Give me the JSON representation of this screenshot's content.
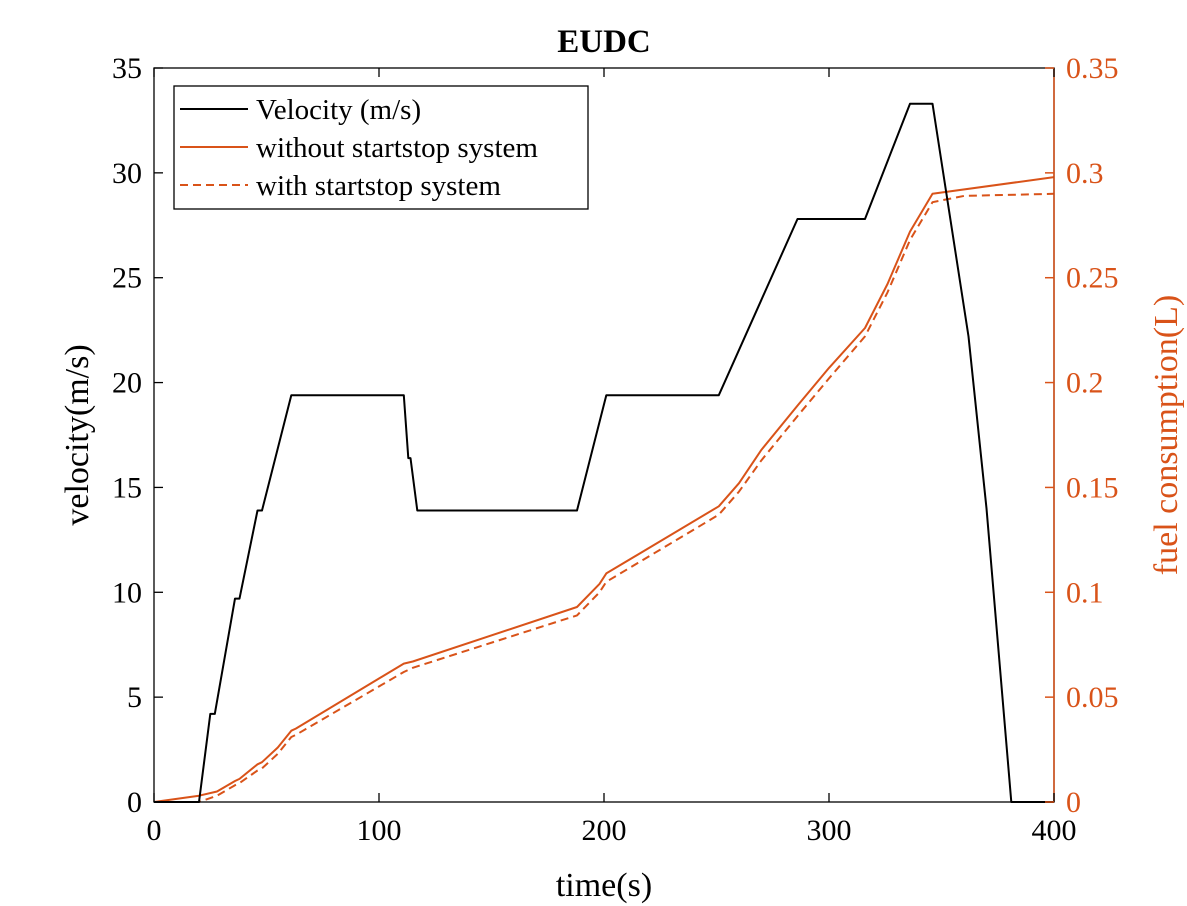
{
  "chart_data": {
    "type": "line",
    "title": "EUDC",
    "xlabel": "time(s)",
    "ylabel_left": "velocity(m/s)",
    "ylabel_right": "fuel consumption(L)",
    "xlim": [
      0,
      400
    ],
    "ylim_left": [
      0,
      35
    ],
    "ylim_right": [
      0,
      0.35
    ],
    "xticks": [
      "0",
      "100",
      "200",
      "300",
      "400"
    ],
    "yticks_left": [
      "0",
      "5",
      "10",
      "15",
      "20",
      "25",
      "30",
      "35"
    ],
    "yticks_right": [
      "0",
      "0.05",
      "0.1",
      "0.15",
      "0.2",
      "0.25",
      "0.3",
      "0.35"
    ],
    "grid": false,
    "legend_position": "top-left",
    "colors": {
      "left_axis": "#000000",
      "right_axis": "#d95319"
    },
    "series": [
      {
        "name": "Velocity (m/s)",
        "axis": "left",
        "color": "#000000",
        "style": "solid",
        "x": [
          0,
          20,
          25,
          27,
          36,
          38,
          46,
          48,
          61,
          111,
          113,
          114,
          117,
          188,
          201,
          251,
          286,
          316,
          336,
          346,
          362,
          370,
          381,
          400
        ],
        "y": [
          0,
          0,
          4.2,
          4.2,
          9.7,
          9.7,
          13.9,
          13.9,
          19.4,
          19.4,
          16.4,
          16.4,
          13.9,
          13.9,
          19.4,
          19.4,
          27.8,
          27.8,
          33.3,
          33.3,
          22.2,
          14,
          0,
          0
        ]
      },
      {
        "name": "without startstop system",
        "axis": "right",
        "color": "#d95319",
        "style": "solid",
        "x": [
          0,
          20,
          28,
          36,
          38,
          46,
          48,
          55,
          61,
          63,
          111,
          115,
          188,
          198,
          201,
          251,
          260,
          270,
          286,
          300,
          316,
          326,
          336,
          346,
          400
        ],
        "y": [
          0,
          0.003,
          0.005,
          0.01,
          0.011,
          0.018,
          0.019,
          0.026,
          0.034,
          0.035,
          0.066,
          0.067,
          0.093,
          0.104,
          0.109,
          0.141,
          0.152,
          0.168,
          0.189,
          0.207,
          0.226,
          0.247,
          0.272,
          0.29,
          0.298
        ]
      },
      {
        "name": "with startstop system",
        "axis": "right",
        "color": "#d95319",
        "style": "dashed",
        "x": [
          0,
          20,
          28,
          36,
          38,
          46,
          48,
          55,
          61,
          63,
          111,
          115,
          188,
          198,
          201,
          251,
          260,
          270,
          286,
          300,
          316,
          326,
          336,
          346,
          360,
          400
        ],
        "y": [
          0,
          0,
          0.003,
          0.008,
          0.009,
          0.015,
          0.016,
          0.023,
          0.031,
          0.032,
          0.062,
          0.064,
          0.089,
          0.1,
          0.105,
          0.137,
          0.148,
          0.163,
          0.184,
          0.202,
          0.222,
          0.243,
          0.268,
          0.286,
          0.289,
          0.29
        ]
      }
    ]
  }
}
